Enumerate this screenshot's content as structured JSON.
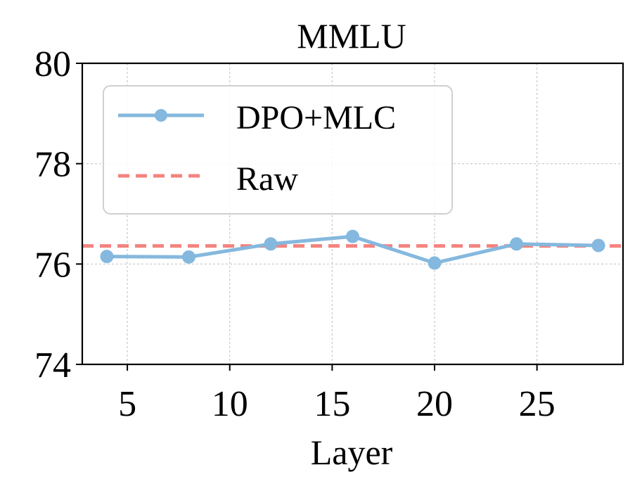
{
  "chart_data": {
    "type": "line",
    "title": "MMLU",
    "xlabel": "Layer",
    "ylabel": "",
    "xlim": [
      2.8,
      29.2
    ],
    "ylim": [
      74,
      80
    ],
    "xticks": [
      5,
      10,
      15,
      20,
      25
    ],
    "yticks": [
      74,
      76,
      78,
      80
    ],
    "grid": true,
    "legend_position": "top-left",
    "series": [
      {
        "name": "DPO+MLC",
        "style": "solid-marker",
        "color": "#85b8de",
        "x": [
          4,
          8,
          12,
          16,
          20,
          24,
          28
        ],
        "y": [
          76.15,
          76.14,
          76.4,
          76.55,
          76.02,
          76.4,
          76.37
        ]
      }
    ],
    "reference_lines": [
      {
        "name": "Raw",
        "style": "dashed",
        "color": "#f4837e",
        "y": 76.36
      }
    ]
  }
}
